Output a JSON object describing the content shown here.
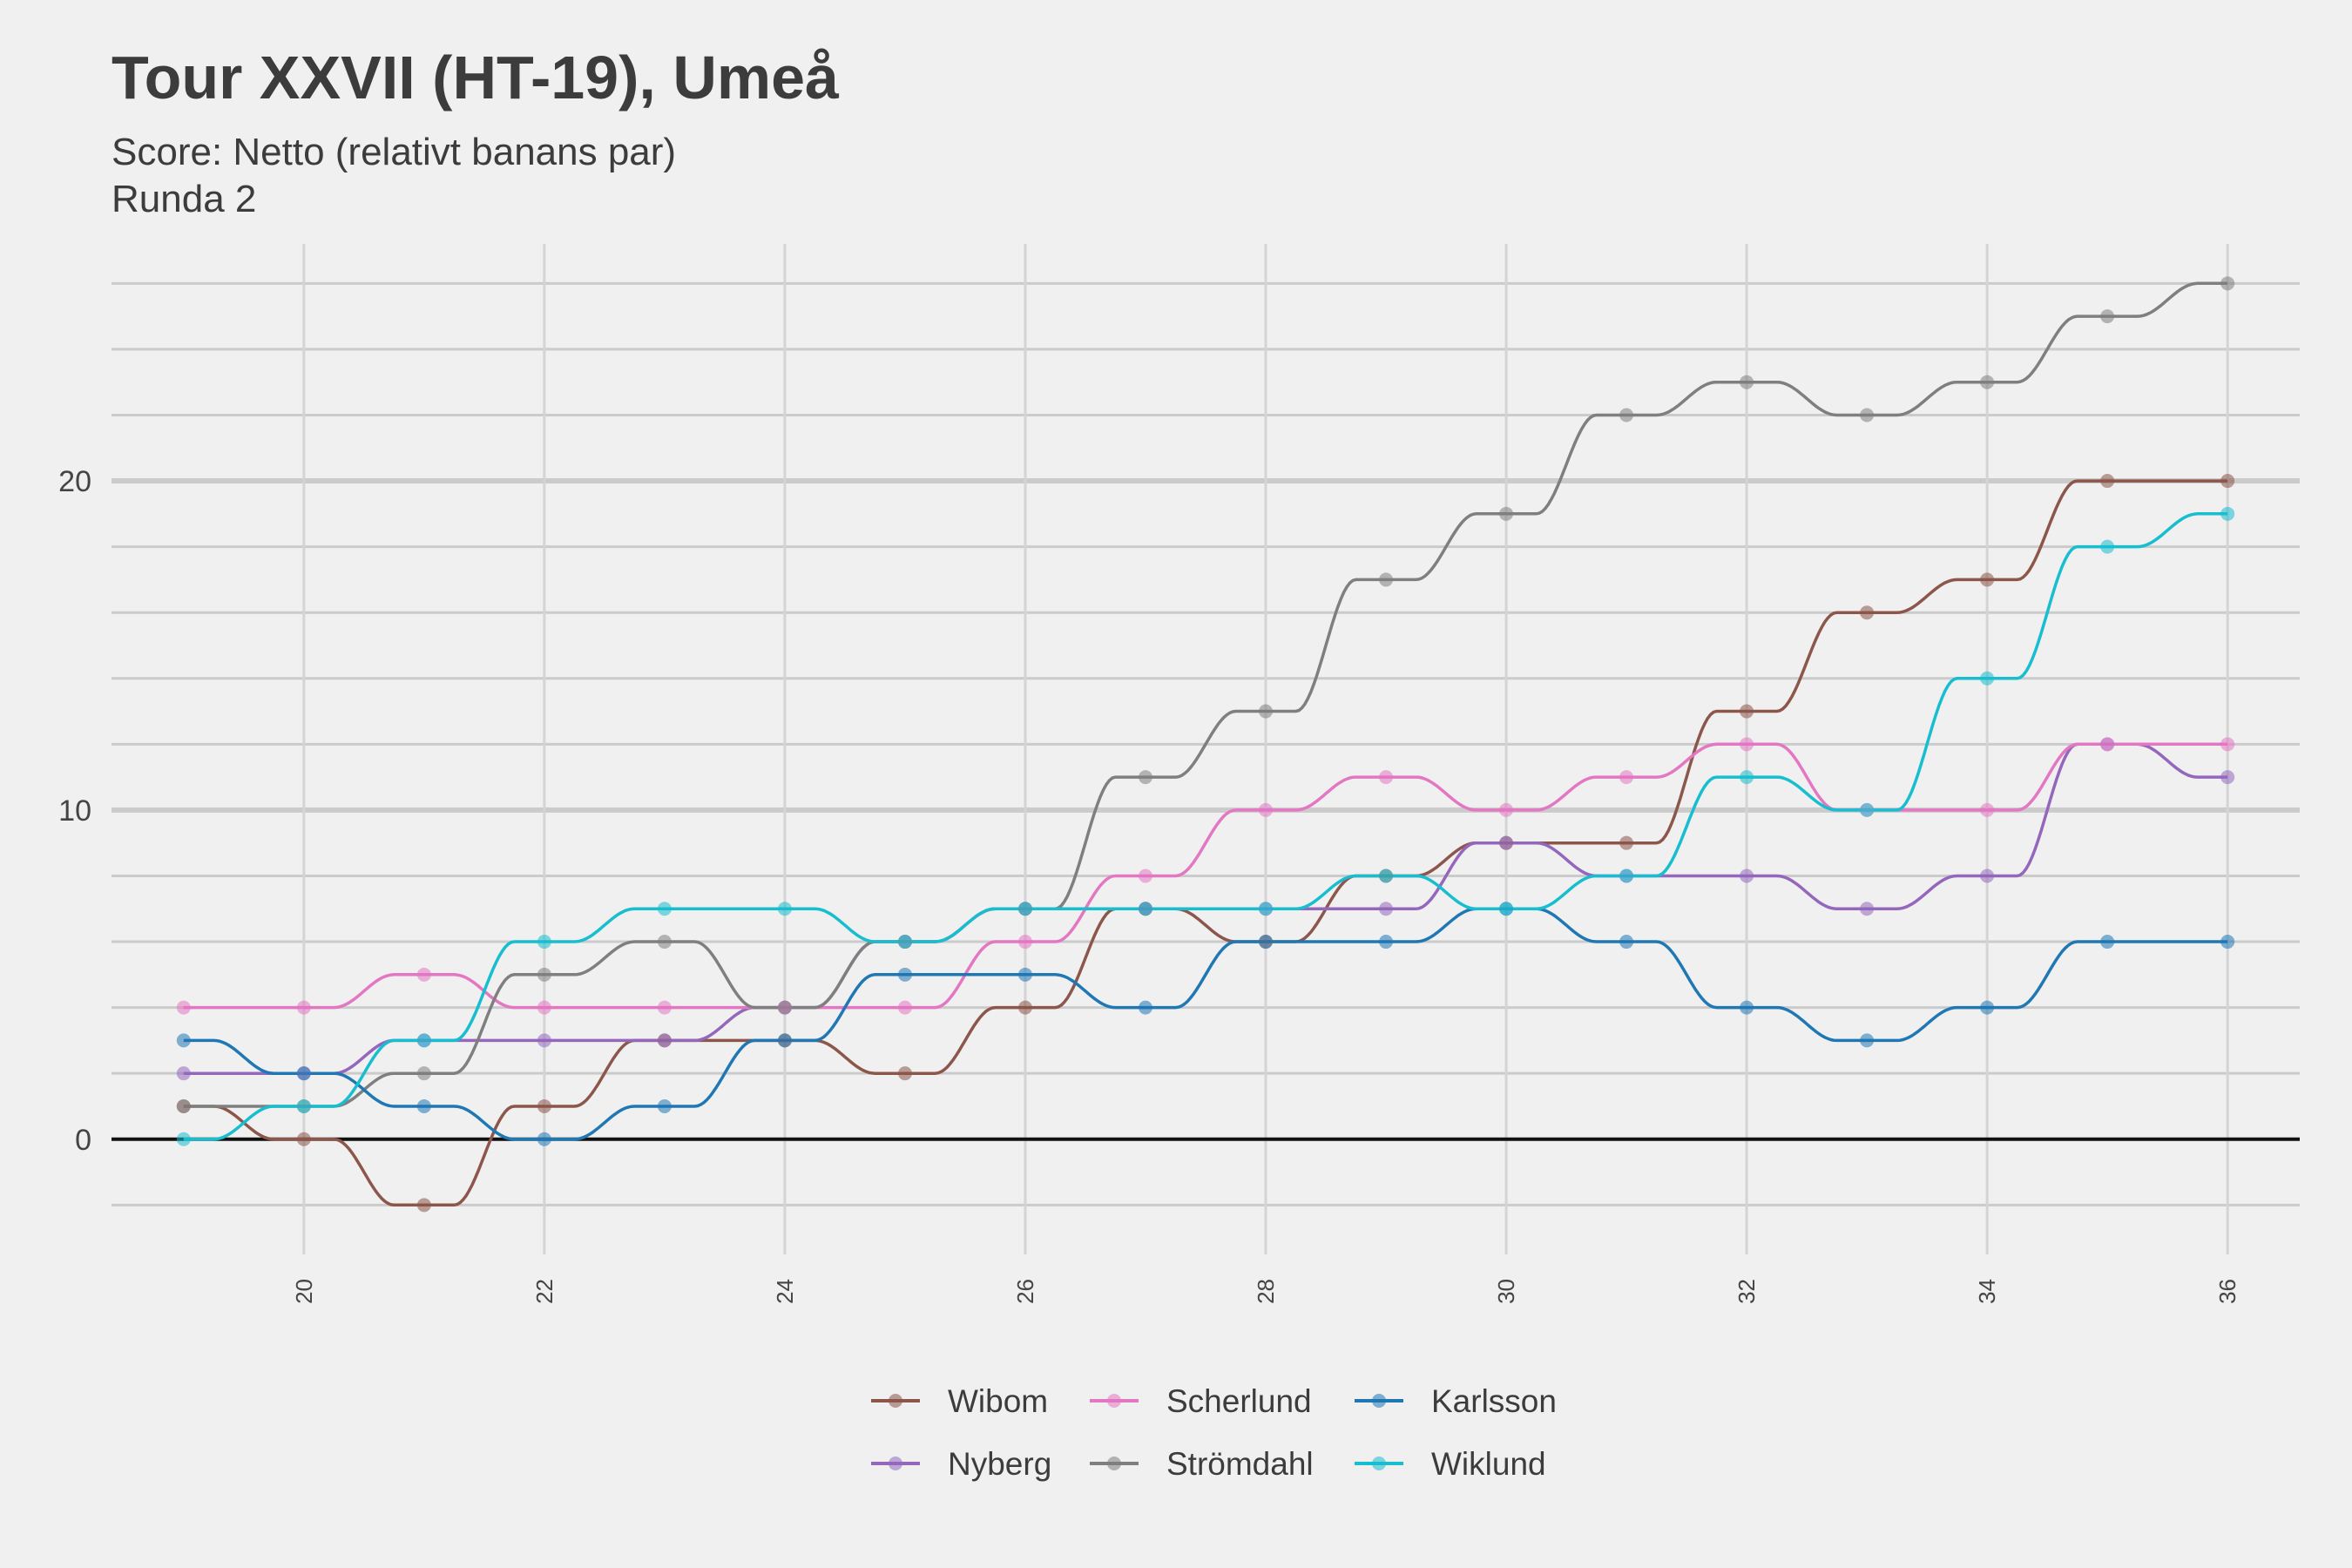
{
  "chart_data": {
    "type": "line",
    "title": "Tour XXVII (HT-19), Umeå",
    "subtitle": "Score: Netto (relativt banans par)",
    "subtitle2": "Runda 2",
    "xlabel": "",
    "ylabel": "",
    "x": [
      19,
      20,
      21,
      22,
      23,
      24,
      25,
      26,
      27,
      28,
      29,
      30,
      31,
      32,
      33,
      34,
      35,
      36
    ],
    "x_ticks": [
      20,
      22,
      24,
      26,
      28,
      30,
      32,
      34,
      36
    ],
    "y_ticks": [
      0,
      10,
      20
    ],
    "xlim": [
      18.4,
      36.6
    ],
    "ylim": [
      -3.5,
      27.2
    ],
    "grid": true,
    "legend_position": "bottom",
    "series": [
      {
        "name": "Wibom",
        "color": "#8c564b",
        "values": [
          1,
          0,
          -2,
          1,
          3,
          3,
          2,
          4,
          7,
          6,
          8,
          9,
          9,
          13,
          16,
          17,
          20,
          20
        ]
      },
      {
        "name": "Nyberg",
        "color": "#9467bd",
        "values": [
          2,
          2,
          3,
          3,
          3,
          4,
          6,
          7,
          7,
          7,
          7,
          9,
          8,
          8,
          7,
          8,
          12,
          11
        ]
      },
      {
        "name": "Scherlund",
        "color": "#e377c2",
        "values": [
          4,
          4,
          5,
          4,
          4,
          4,
          4,
          6,
          8,
          10,
          11,
          10,
          11,
          12,
          10,
          10,
          12,
          12
        ]
      },
      {
        "name": "Strömdahl",
        "color": "#7f7f7f",
        "values": [
          1,
          1,
          2,
          5,
          6,
          4,
          6,
          7,
          11,
          13,
          17,
          19,
          22,
          23,
          22,
          23,
          25,
          26
        ]
      },
      {
        "name": "Karlsson",
        "color": "#1f77b4",
        "values": [
          3,
          2,
          1,
          0,
          1,
          3,
          5,
          5,
          4,
          6,
          6,
          7,
          6,
          4,
          3,
          4,
          6,
          6
        ]
      },
      {
        "name": "Wiklund",
        "color": "#17becf",
        "values": [
          0,
          1,
          3,
          6,
          7,
          7,
          6,
          7,
          7,
          7,
          8,
          7,
          8,
          11,
          10,
          14,
          18,
          19
        ]
      }
    ]
  }
}
